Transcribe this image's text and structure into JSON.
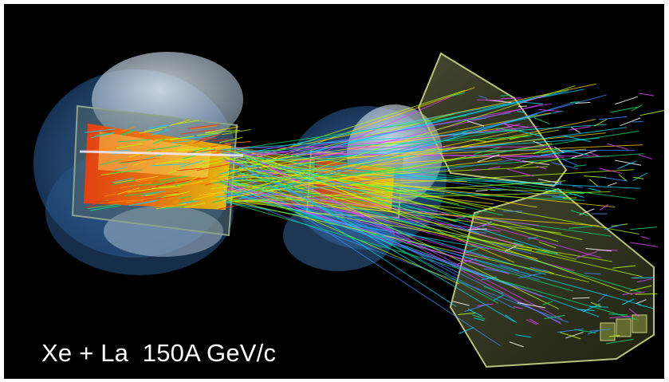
{
  "caption": "Xe + La  150A GeV/c",
  "colors": {
    "background": "#000000",
    "frame": "#ffffff",
    "caption_text": "#ffffff",
    "magnet_blue": "#3a6ea8",
    "magnet_pale": "#c8d6e4",
    "tpc_box": "#b8c47a",
    "track_colors": [
      "#ff2a00",
      "#ff8a00",
      "#ffd800",
      "#b8ff00",
      "#00e070",
      "#00d8ff",
      "#3a8cff",
      "#e040ff",
      "#ffffff"
    ]
  },
  "icons": [
    "detector-event-display-image"
  ]
}
